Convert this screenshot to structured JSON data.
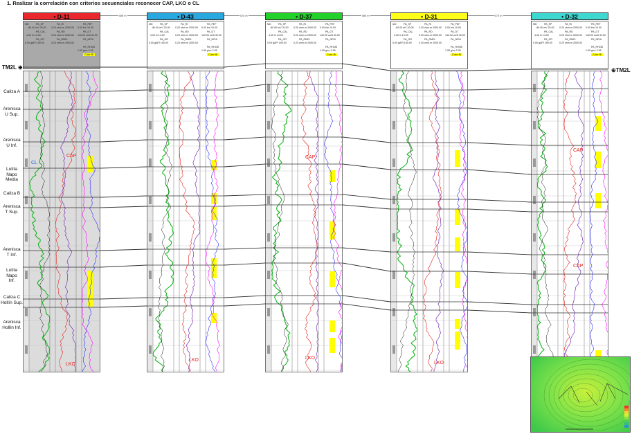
{
  "title": "1.    Realizar la correlación con criterios secuenciales reconocer CAP, LKO o CL",
  "wells": [
    {
      "name": "D-11",
      "color": "#e8282d",
      "dist": "489 m",
      "grey": true
    },
    {
      "name": "D-43",
      "color": "#29a8e0",
      "dist": "424 m",
      "grey": false
    },
    {
      "name": "D-37",
      "color": "#22d129",
      "dist": "386 m",
      "grey": false
    },
    {
      "name": "D-31",
      "color": "#ffff1a",
      "dist": "673 m",
      "grey": false
    },
    {
      "name": "D-32",
      "color": "#3fd8d1",
      "dist": "",
      "grey": false
    }
  ],
  "header_cells": {
    "h1": "MD",
    "sp": "PA_SP",
    "sp_range": "-80.00   mV   20.00",
    "cal": "PA_CAL",
    "cal_range": "4.00    in    14.00",
    "gr": "PA_GR",
    "gr_range": "0.00   gAPI  150.00",
    "ri": "PA_RI",
    "rd": "PA_RD",
    "rmfl": "PA_RMFL",
    "ohm": "0.20 ohm.m 2000.00",
    "pef": "PA_PEF",
    "pef_range": "0.00  b/e  10.00",
    "dt": "PA_DT",
    "dt_range": "140.00 us/ft 40.00",
    "nph": "PA_NPHI",
    "rhob": "PA_RHOB",
    "rhob_range": "1.95  g/cc  2.95",
    "color_fill": "Color fill"
  },
  "formations": [
    {
      "label": "Caliza A"
    },
    {
      "label": "Arenisca\nU Sup."
    },
    {
      "label": "Arenisca\nU Inf."
    },
    {
      "label": "Lutita\nNapo\nMedia"
    },
    {
      "label": "Caliza B"
    },
    {
      "label": "Arenisca\nT Sup."
    },
    {
      "label": "Arenisca\nT Inf."
    },
    {
      "label": "Lutita\nNapo\nInf."
    },
    {
      "label": "Caliza C\nHollín Sup."
    },
    {
      "label": "Arenisca\nHollín Inf."
    }
  ],
  "marker_left": "TM2L",
  "marker_right": "TM2L",
  "annotations": {
    "cl": "CL",
    "cap": "CAP",
    "lko": "LKO"
  },
  "colors": {
    "sp": "#7b2fb5",
    "gr": "#16b51f",
    "res": "#e0201c",
    "pef": "#2a2aff",
    "dt": "#ff00ff",
    "fill": "#ffff00",
    "correlation": "#333333"
  }
}
